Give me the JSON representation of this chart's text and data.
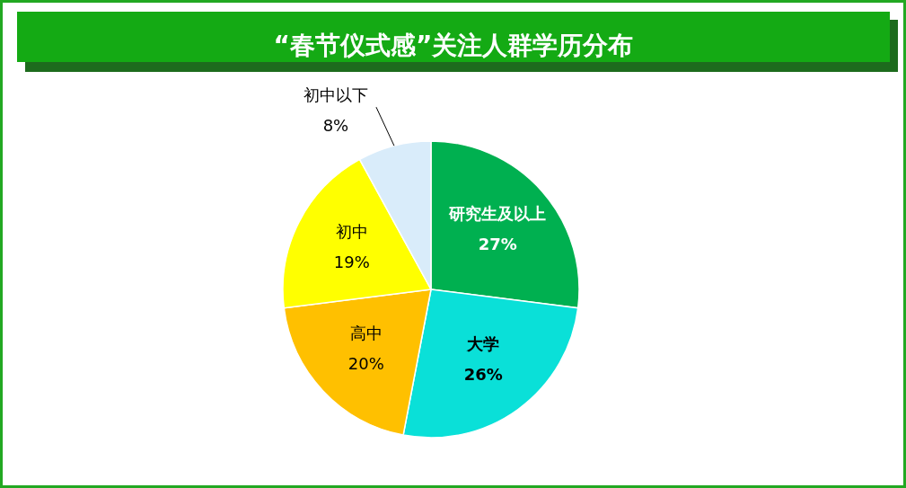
{
  "chart_data": {
    "type": "pie",
    "title": "“春节仪式感”关注人群学历分布",
    "categories": [
      "研究生及以上",
      "大学",
      "高中",
      "初中",
      "初中以下"
    ],
    "values": [
      27,
      26,
      20,
      19,
      8
    ],
    "colors": [
      "#00b050",
      "#0ae0d8",
      "#ffc000",
      "#ffff00",
      "#d9ecfa"
    ],
    "value_labels": [
      "27%",
      "26%",
      "20%",
      "19%",
      "8%"
    ]
  }
}
